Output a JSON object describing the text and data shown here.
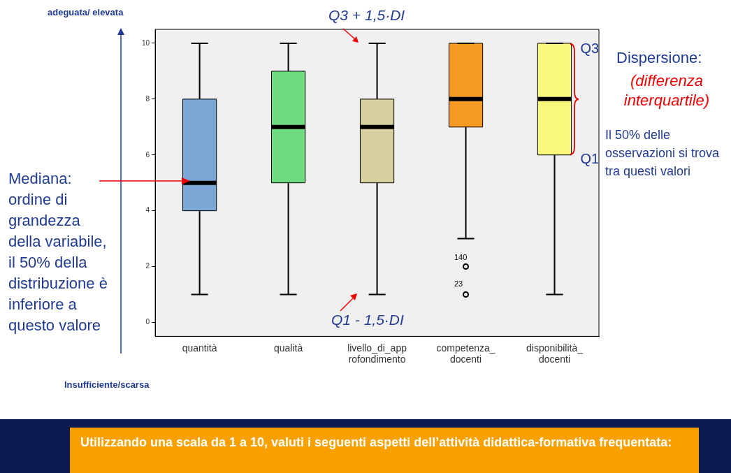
{
  "chart_data": {
    "type": "box",
    "title": "Utilizzando una scala da 1 a 10, valuti i seguenti aspetti dell’attività didattica-formativa frequentata:",
    "categories": [
      "quantità",
      "qualità",
      "livello_di_approfondimento",
      "competenza_docenti",
      "disponibilità_docenti"
    ],
    "colors": [
      "#7ba7d7",
      "#6ddc7e",
      "#d6cf9e",
      "#f79a23",
      "#f8f87a"
    ],
    "boxes": [
      {
        "low": 1,
        "q1": 4,
        "median": 5,
        "q3": 8,
        "high": 10
      },
      {
        "low": 1,
        "q1": 5,
        "median": 7,
        "q3": 9,
        "high": 10
      },
      {
        "low": 1,
        "q1": 5,
        "median": 7,
        "q3": 8,
        "high": 10
      },
      {
        "low": 3,
        "q1": 7,
        "median": 8,
        "q3": 10,
        "high": 10,
        "outliers": [
          2,
          1
        ]
      },
      {
        "low": 1,
        "q1": 6,
        "median": 8,
        "q3": 10,
        "high": 10
      }
    ],
    "ylim": [
      -0.5,
      10.5
    ],
    "yticks": [
      0,
      2,
      4,
      6,
      8,
      10
    ],
    "grid": false,
    "legend": false,
    "annotations": [
      "adeguata/ elevata",
      "Insufficiente/scarsa",
      "Q3 + 1,5·DI",
      "Q1 - 1,5·DI",
      "Mediana: ordine di grandezza della variabile, il 50% della distribuzione è inferiore a questo valore",
      {
        "text": "Q3",
        "x": "disponibilità_docenti",
        "y": 10
      },
      {
        "text": "Q1",
        "x": "disponibilità_docenti",
        "y": 6
      },
      "Dispersione:",
      "(differenza interquartile)",
      "Il 50% delle osservazioni si trova tra questi valori",
      "140",
      "23"
    ]
  }
}
